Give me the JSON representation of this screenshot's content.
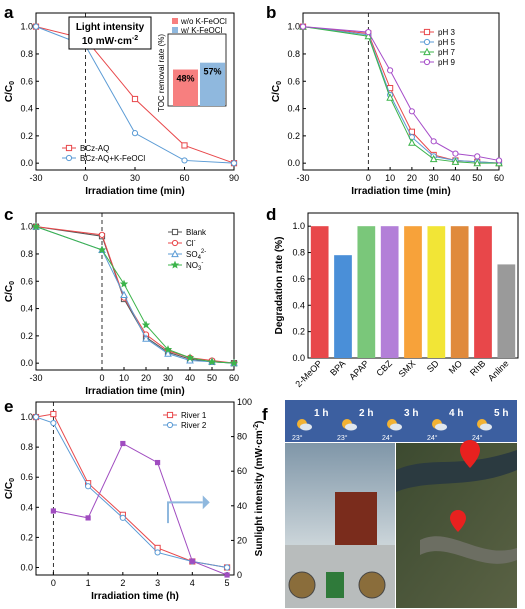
{
  "panels": {
    "a": {
      "label": "a",
      "xlabel": "Irradiation  time (min)",
      "ylabel": "C/C",
      "ylabel_sub": "0",
      "xticks": [
        "-30",
        "0",
        "30",
        "60",
        "90"
      ],
      "yticks": [
        "0.0",
        "0.2",
        "0.4",
        "0.6",
        "0.8",
        "1.0"
      ],
      "annotation_line1": "Light intensity",
      "annotation_line2": "10 mW·cm",
      "annotation_sup": "-2",
      "legend": [
        "BCz-AQ",
        "BCz-AQ+K-FeOCl"
      ],
      "inset": {
        "ylabel": "TOC removal rate (%)",
        "legend": [
          "w/o K-FeOCl",
          "w/ K-FeOCl"
        ],
        "bar_labels": [
          "48%",
          "57%"
        ]
      }
    },
    "b": {
      "label": "b",
      "xlabel": "Irradiation  time (min)",
      "ylabel": "C/C",
      "ylabel_sub": "0",
      "xticks": [
        "-30",
        "0",
        "10",
        "20",
        "30",
        "40",
        "50",
        "60"
      ],
      "yticks": [
        "0.0",
        "0.2",
        "0.4",
        "0.6",
        "0.8",
        "1.0"
      ],
      "legend": [
        "pH 3",
        "pH 5",
        "pH 7",
        "pH 9"
      ]
    },
    "c": {
      "label": "c",
      "xlabel": "Irradiation  time (min)",
      "ylabel": "C/C",
      "ylabel_sub": "0",
      "xticks": [
        "-30",
        "0",
        "10",
        "20",
        "30",
        "40",
        "50",
        "60"
      ],
      "yticks": [
        "0.0",
        "0.2",
        "0.4",
        "0.6",
        "0.8",
        "1.0"
      ],
      "legend": [
        "Blank",
        "Cl",
        "SO",
        "NO"
      ],
      "legend_sup": [
        "",
        "-",
        "2-",
        "-"
      ],
      "legend_sub": [
        "",
        "",
        "4",
        "3"
      ]
    },
    "d": {
      "label": "d",
      "ylabel": "Degradation rate (%)",
      "yticks": [
        "0.0",
        "0.2",
        "0.4",
        "0.6",
        "0.8",
        "1.0"
      ]
    },
    "e": {
      "label": "e",
      "xlabel": "Irradiation  time (h)",
      "ylabel": "C/C",
      "ylabel_sub": "0",
      "y2label": "Sunlight intensity (mW·cm",
      "y2label_sup": "-2",
      "y2label_end": ")",
      "xticks": [
        "0",
        "1",
        "2",
        "3",
        "4",
        "5"
      ],
      "yticks": [
        "0.0",
        "0.2",
        "0.4",
        "0.6",
        "0.8",
        "1.0"
      ],
      "y2ticks": [
        "0",
        "20",
        "40",
        "60",
        "80",
        "100"
      ],
      "legend": [
        "River 1",
        "River 2"
      ]
    },
    "f": {
      "label": "f",
      "weather": [
        {
          "time": "1 h",
          "temp": "23°"
        },
        {
          "time": "2 h",
          "temp": "23°"
        },
        {
          "time": "3 h",
          "temp": "24°"
        },
        {
          "time": "4 h",
          "temp": "24°"
        },
        {
          "time": "5 h",
          "temp": "24°"
        }
      ]
    }
  },
  "colors": {
    "red": "#e8474a",
    "blue": "#5b9bd5",
    "green": "#3cb44b",
    "purple": "#a64dc9",
    "gray": "#555555",
    "inset_red": "#f77f7f",
    "inset_blue": "#8fb8de",
    "sun": "#a04cc0"
  },
  "chart_data": [
    {
      "panel": "a",
      "type": "line",
      "xlim": [
        -30,
        90
      ],
      "ylim": [
        -0.05,
        1.1
      ],
      "series": [
        {
          "name": "BCz-AQ",
          "x": [
            -30,
            0,
            30,
            60,
            90
          ],
          "y": [
            1.0,
            0.91,
            0.47,
            0.13,
            0.0
          ]
        },
        {
          "name": "BCz-AQ+K-FeOCl",
          "x": [
            -30,
            0,
            30,
            60,
            90
          ],
          "y": [
            1.0,
            0.86,
            0.22,
            0.02,
            0.0
          ]
        }
      ],
      "inset": {
        "type": "bar",
        "categories": [
          "w/o K-FeOCl",
          "w/ K-FeOCl"
        ],
        "values": [
          48,
          57
        ]
      }
    },
    {
      "panel": "b",
      "type": "line",
      "xlim": [
        -30,
        60
      ],
      "ylim": [
        -0.05,
        1.1
      ],
      "series": [
        {
          "name": "pH 3",
          "x": [
            -30,
            0,
            10,
            20,
            30,
            40,
            50,
            60
          ],
          "y": [
            1.0,
            0.95,
            0.55,
            0.23,
            0.06,
            0.02,
            0.01,
            0.0
          ]
        },
        {
          "name": "pH 5",
          "x": [
            -30,
            0,
            10,
            20,
            30,
            40,
            50,
            60
          ],
          "y": [
            1.0,
            0.94,
            0.5,
            0.19,
            0.05,
            0.02,
            0.01,
            0.0
          ]
        },
        {
          "name": "pH 7",
          "x": [
            -30,
            0,
            10,
            20,
            30,
            40,
            50,
            60
          ],
          "y": [
            1.0,
            0.93,
            0.48,
            0.15,
            0.03,
            0.01,
            0.0,
            0.0
          ]
        },
        {
          "name": "pH 9",
          "x": [
            -30,
            0,
            10,
            20,
            30,
            40,
            50,
            60
          ],
          "y": [
            1.0,
            0.96,
            0.68,
            0.38,
            0.16,
            0.07,
            0.05,
            0.02
          ]
        }
      ]
    },
    {
      "panel": "c",
      "type": "line",
      "xlim": [
        -30,
        60
      ],
      "ylim": [
        -0.05,
        1.1
      ],
      "series": [
        {
          "name": "Blank",
          "x": [
            -30,
            0,
            10,
            20,
            30,
            40,
            50,
            60
          ],
          "y": [
            1.0,
            0.93,
            0.47,
            0.19,
            0.08,
            0.03,
            0.01,
            0.0
          ]
        },
        {
          "name": "Cl-",
          "x": [
            -30,
            0,
            10,
            20,
            30,
            40,
            50,
            60
          ],
          "y": [
            1.0,
            0.94,
            0.48,
            0.21,
            0.09,
            0.04,
            0.02,
            0.0
          ]
        },
        {
          "name": "SO42-",
          "x": [
            -30,
            0,
            10,
            20,
            30,
            40,
            50,
            60
          ],
          "y": [
            1.0,
            0.83,
            0.5,
            0.18,
            0.07,
            0.02,
            0.01,
            0.0
          ]
        },
        {
          "name": "NO3-",
          "x": [
            -30,
            0,
            10,
            20,
            30,
            40,
            50,
            60
          ],
          "y": [
            1.0,
            0.83,
            0.58,
            0.28,
            0.1,
            0.04,
            0.01,
            0.0
          ]
        }
      ]
    },
    {
      "panel": "d",
      "type": "bar",
      "ylim": [
        0,
        1.1
      ],
      "categories": [
        "2-MeOP",
        "BPA",
        "APAP",
        "CBZ",
        "SMX",
        "SD",
        "MO",
        "RhB",
        "Anline"
      ],
      "values": [
        1.0,
        0.78,
        1.0,
        1.0,
        1.0,
        1.0,
        1.0,
        1.0,
        0.71
      ],
      "bar_colors": [
        "#e8474a",
        "#4a8fd8",
        "#7ac77a",
        "#b37fd8",
        "#f7a23a",
        "#f2e536",
        "#e08a3c",
        "#e8474a",
        "#9a9a9a"
      ]
    },
    {
      "panel": "e",
      "type": "line",
      "xlim": [
        -0.5,
        5.2
      ],
      "ylim": [
        -0.05,
        1.1
      ],
      "y2lim": [
        0,
        100
      ],
      "series": [
        {
          "name": "River 1",
          "x": [
            -0.5,
            0,
            1,
            2,
            3,
            4,
            5
          ],
          "y": [
            1.0,
            1.02,
            0.56,
            0.35,
            0.13,
            0.04,
            0.0
          ]
        },
        {
          "name": "River 2",
          "x": [
            -0.5,
            0,
            1,
            2,
            3,
            4,
            5
          ],
          "y": [
            1.0,
            0.96,
            0.54,
            0.33,
            0.1,
            0.04,
            0.0
          ]
        },
        {
          "x": [
            0,
            1,
            2,
            3,
            4,
            5
          ],
          "y": [
            37,
            33,
            76,
            65,
            8,
            0
          ],
          "axis": "right"
        }
      ]
    }
  ]
}
